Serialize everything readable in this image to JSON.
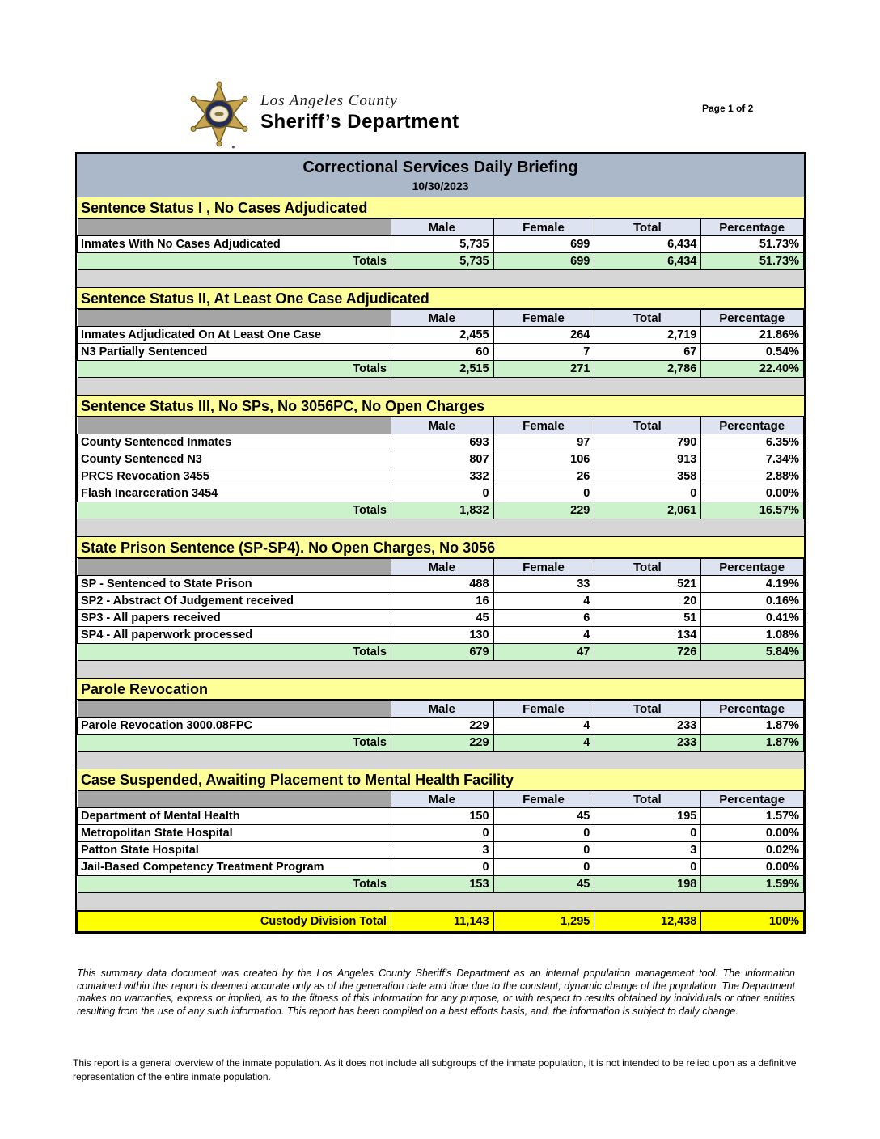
{
  "page": {
    "number_label": "Page 1 of 2"
  },
  "logo": {
    "county": "Los Angeles County",
    "department": "Sheriff’s Department"
  },
  "report": {
    "title": "Correctional Services Daily Briefing",
    "date": "10/30/2023"
  },
  "columns": [
    "Male",
    "Female",
    "Total",
    "Percentage"
  ],
  "totals_label": "Totals",
  "sections": [
    {
      "title": "Sentence Status I , No Cases Adjudicated",
      "rows": [
        {
          "label": "Inmates With No Cases Adjudicated",
          "male": "5,735",
          "female": "699",
          "total": "6,434",
          "percentage": "51.73%"
        }
      ],
      "totals": {
        "male": "5,735",
        "female": "699",
        "total": "6,434",
        "percentage": "51.73%"
      }
    },
    {
      "title": "Sentence Status II, At Least One Case Adjudicated",
      "rows": [
        {
          "label": "Inmates Adjudicated On At Least One Case",
          "male": "2,455",
          "female": "264",
          "total": "2,719",
          "percentage": "21.86%"
        },
        {
          "label": "N3 Partially Sentenced",
          "male": "60",
          "female": "7",
          "total": "67",
          "percentage": "0.54%"
        }
      ],
      "totals": {
        "male": "2,515",
        "female": "271",
        "total": "2,786",
        "percentage": "22.40%"
      }
    },
    {
      "title": "Sentence Status III, No SPs, No 3056PC, No Open Charges",
      "rows": [
        {
          "label": "County Sentenced Inmates",
          "male": "693",
          "female": "97",
          "total": "790",
          "percentage": "6.35%"
        },
        {
          "label": "County Sentenced N3",
          "male": "807",
          "female": "106",
          "total": "913",
          "percentage": "7.34%"
        },
        {
          "label": "PRCS Revocation 3455",
          "male": "332",
          "female": "26",
          "total": "358",
          "percentage": "2.88%"
        },
        {
          "label": "Flash Incarceration 3454",
          "male": "0",
          "female": "0",
          "total": "0",
          "percentage": "0.00%"
        }
      ],
      "totals": {
        "male": "1,832",
        "female": "229",
        "total": "2,061",
        "percentage": "16.57%"
      }
    },
    {
      "title": "State Prison Sentence (SP-SP4). No Open Charges, No 3056",
      "rows": [
        {
          "label": "SP - Sentenced to State Prison",
          "male": "488",
          "female": "33",
          "total": "521",
          "percentage": "4.19%"
        },
        {
          "label": "SP2 - Abstract Of Judgement received",
          "male": "16",
          "female": "4",
          "total": "20",
          "percentage": "0.16%"
        },
        {
          "label": "SP3 - All papers received",
          "male": "45",
          "female": "6",
          "total": "51",
          "percentage": "0.41%"
        },
        {
          "label": "SP4 - All paperwork processed",
          "male": "130",
          "female": "4",
          "total": "134",
          "percentage": "1.08%"
        }
      ],
      "totals": {
        "male": "679",
        "female": "47",
        "total": "726",
        "percentage": "5.84%"
      }
    },
    {
      "title": "Parole Revocation",
      "rows": [
        {
          "label": "Parole Revocation 3000.08FPC",
          "male": "229",
          "female": "4",
          "total": "233",
          "percentage": "1.87%"
        }
      ],
      "totals": {
        "male": "229",
        "female": "4",
        "total": "233",
        "percentage": "1.87%"
      }
    },
    {
      "title": "Case Suspended, Awaiting Placement to Mental Health Facility",
      "rows": [
        {
          "label": "Department of Mental Health",
          "male": "150",
          "female": "45",
          "total": "195",
          "percentage": "1.57%"
        },
        {
          "label": "Metropolitan State Hospital",
          "male": "0",
          "female": "0",
          "total": "0",
          "percentage": "0.00%"
        },
        {
          "label": "Patton State Hospital",
          "male": "3",
          "female": "0",
          "total": "3",
          "percentage": "0.02%"
        },
        {
          "label": "Jail-Based Competency Treatment Program",
          "male": "0",
          "female": "0",
          "total": "0",
          "percentage": "0.00%"
        }
      ],
      "totals": {
        "male": "153",
        "female": "45",
        "total": "198",
        "percentage": "1.59%"
      }
    }
  ],
  "grand_total": {
    "label": "Custody Division Total",
    "male": "11,143",
    "female": "1,295",
    "total": "12,438",
    "percentage": "100%"
  },
  "disclaimer": "This summary data document was created by the Los Angeles County Sheriff's Department as an internal population management tool.  The information contained within this report is deemed accurate only as of the generation date and time due to the constant, dynamic change of the population.  The Department makes no warranties, express or implied, as to the fitness of this information for any purpose, or with respect to results obtained by individuals or other entities resulting from the use of any such information.  This report has been compiled on a best efforts basis, and, the information is subject to daily change.",
  "footnote": "This report is a general overview of the inmate population.  As it does not include all subgroups of the inmate population, it is not intended to be relied upon as a definitive representation of the entire inmate population.",
  "colors": {
    "title_bar": "#abb8c9",
    "section_header": "#ffff99",
    "corner_cell": "#a5a5a5",
    "column_header": "#dde3f0",
    "totals_row": "#ccf2cc",
    "spacer": "#d6d6d6",
    "grand_total_row": "#ffff00",
    "badge_gold": "#c7a44e",
    "badge_navy": "#1f2c5c"
  }
}
